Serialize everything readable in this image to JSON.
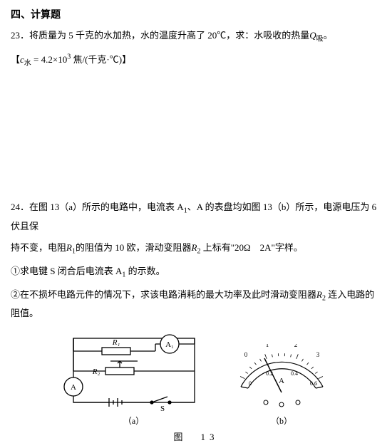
{
  "section": {
    "title": "四、计算题"
  },
  "p23": {
    "number": "23．",
    "text": "将质量为 5 千克的水加热，水的温度升高了 20℃，求：水吸收的热量",
    "symbol_Q": "Q",
    "symbol_Q_sub": "吸",
    "period": "。",
    "formula_open": "【",
    "formula_c": "c",
    "formula_c_sub": "水",
    "formula_eq": " = 4.2×10",
    "formula_exp": "3",
    "formula_unit": " 焦/(千克·℃)】"
  },
  "p24": {
    "number": "24．",
    "line1a": "在图 13（a）所示的电路中，电流表 A",
    "line1_sub1": "1",
    "line1b": "、A 的表盘均如图 13（b）所示，电源电压为 6 伏且保",
    "line2a": "持不变，电阻",
    "line2_R1": "R",
    "line2_R1sub": "1",
    "line2b": "的阻值为 10 欧，滑动变阻器",
    "line2_R2": "R",
    "line2_R2sub": "2",
    "line2c": " 上标有\"20Ω　2A\"字样。",
    "q1a": "①求电键 S 闭合后电流表 A",
    "q1sub": "1",
    "q1b": " 的示数。",
    "q2a": "②在不损坏电路元件的情况下，求该电路消耗的最大功率及此时滑动变阻器",
    "q2_R2": "R",
    "q2_R2sub": "2",
    "q2b": " 连入电路的阻值。"
  },
  "figure": {
    "label_a": "（a）",
    "label_b": "（b）",
    "caption": "图　13",
    "circuit": {
      "A1": "A₁",
      "A": "A",
      "R1": "R₁",
      "R2": "R₂",
      "S": "S"
    },
    "meter": {
      "unit": "A",
      "top_scale": [
        "0",
        "1",
        "2",
        "3"
      ],
      "bottom_scale": [
        "0",
        "0.2",
        "0.4",
        "0.6"
      ]
    }
  }
}
